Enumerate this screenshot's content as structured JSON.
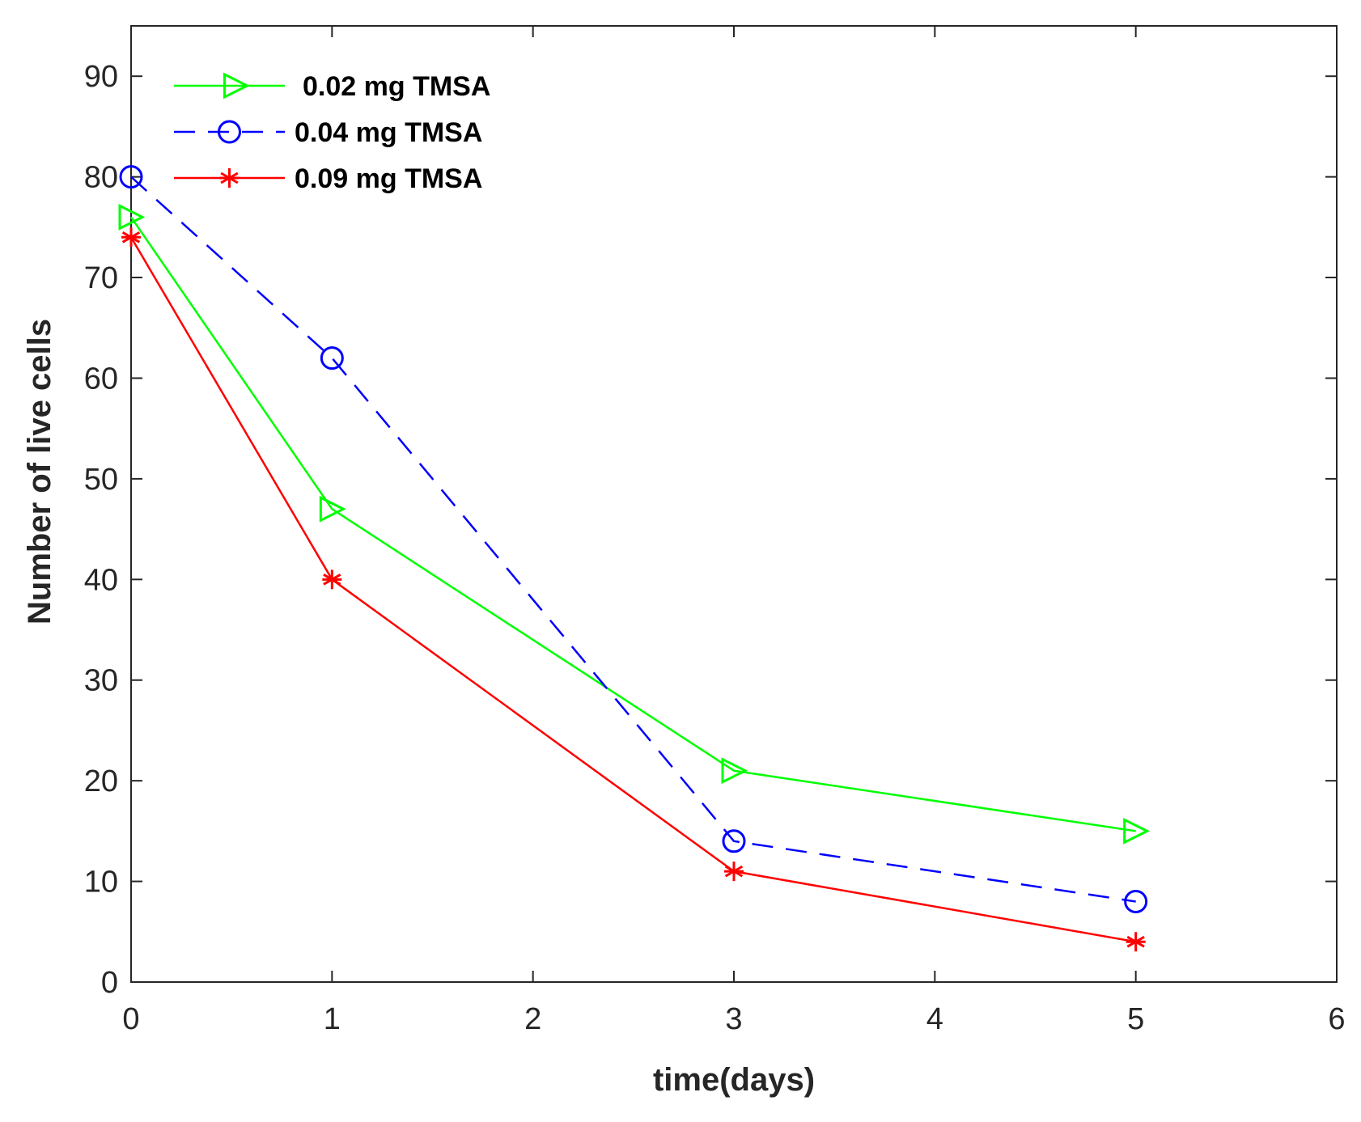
{
  "chart_data": {
    "type": "line",
    "title": "",
    "xlabel": "time(days)",
    "ylabel": "Number of live cells",
    "xlim": [
      0,
      6
    ],
    "ylim": [
      0,
      95
    ],
    "xticks": [
      0,
      1,
      2,
      3,
      4,
      5,
      6
    ],
    "yticks": [
      0,
      10,
      20,
      30,
      40,
      50,
      60,
      70,
      80,
      90
    ],
    "grid": false,
    "legend_position": "top-left",
    "series": [
      {
        "name": "0.02 mg TMSA",
        "color": "#00ff00",
        "line_style": "solid",
        "marker": "triangle-right",
        "x": [
          0,
          1,
          3,
          5
        ],
        "y": [
          76,
          47,
          21,
          15
        ]
      },
      {
        "name": "0.04 mg TMSA",
        "color": "#0000ff",
        "line_style": "dashed",
        "marker": "circle",
        "x": [
          0,
          1,
          3,
          5
        ],
        "y": [
          80,
          62,
          14,
          8
        ]
      },
      {
        "name": "0.09 mg TMSA",
        "color": "#ff0000",
        "line_style": "solid",
        "marker": "asterisk",
        "x": [
          0,
          1,
          3,
          5
        ],
        "y": [
          74,
          40,
          11,
          4
        ]
      }
    ]
  }
}
